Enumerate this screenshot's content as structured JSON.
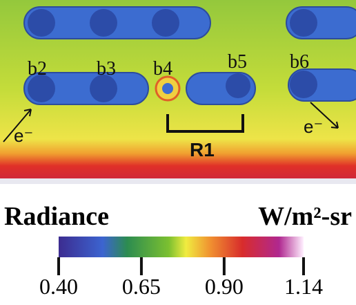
{
  "image": {
    "pad_labels": [
      "b2",
      "b3",
      "b4",
      "b5",
      "b6"
    ],
    "electron_labels": [
      "e⁻",
      "e⁻"
    ],
    "region_label": "R1"
  },
  "colorbar": {
    "title": "Radiance",
    "unit": "W/m²-sr",
    "lim": [
      0.4,
      1.14
    ],
    "ticks": [
      {
        "value": 0.4,
        "label": "0.40"
      },
      {
        "value": 0.65,
        "label": "0.65"
      },
      {
        "value": 0.9,
        "label": "0.90"
      },
      1.14
    ]
  }
}
